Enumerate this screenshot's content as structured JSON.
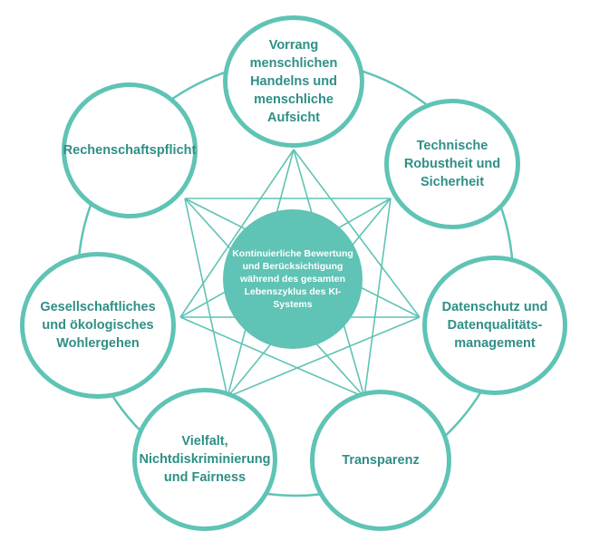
{
  "colors": {
    "accent": "#5fc3b5",
    "text": "#2f8f86",
    "center_text": "#ffffff",
    "background": "#ffffff"
  },
  "center": {
    "label": "Kontinuierliche Bewertung und Berücksichtigung während des gesamten Lebenszyklus des KI-Systems"
  },
  "nodes": [
    {
      "id": "human-oversight",
      "label": "Vorrang menschlichen Handelns und menschliche Aufsicht"
    },
    {
      "id": "technical-robustness",
      "label": "Technische Robustheit und Sicherheit"
    },
    {
      "id": "data-privacy",
      "label": "Datenschutz und Datenqualitäts-management"
    },
    {
      "id": "transparency",
      "label": "Transparenz"
    },
    {
      "id": "diversity-fairness",
      "label": "Vielfalt, Nichtdiskriminierung und Fairness"
    },
    {
      "id": "societal-wellbeing",
      "label": "Gesellschaftliches und ökologisches Wohlergehen"
    },
    {
      "id": "accountability",
      "label": "Rechenschaftspflicht"
    }
  ]
}
